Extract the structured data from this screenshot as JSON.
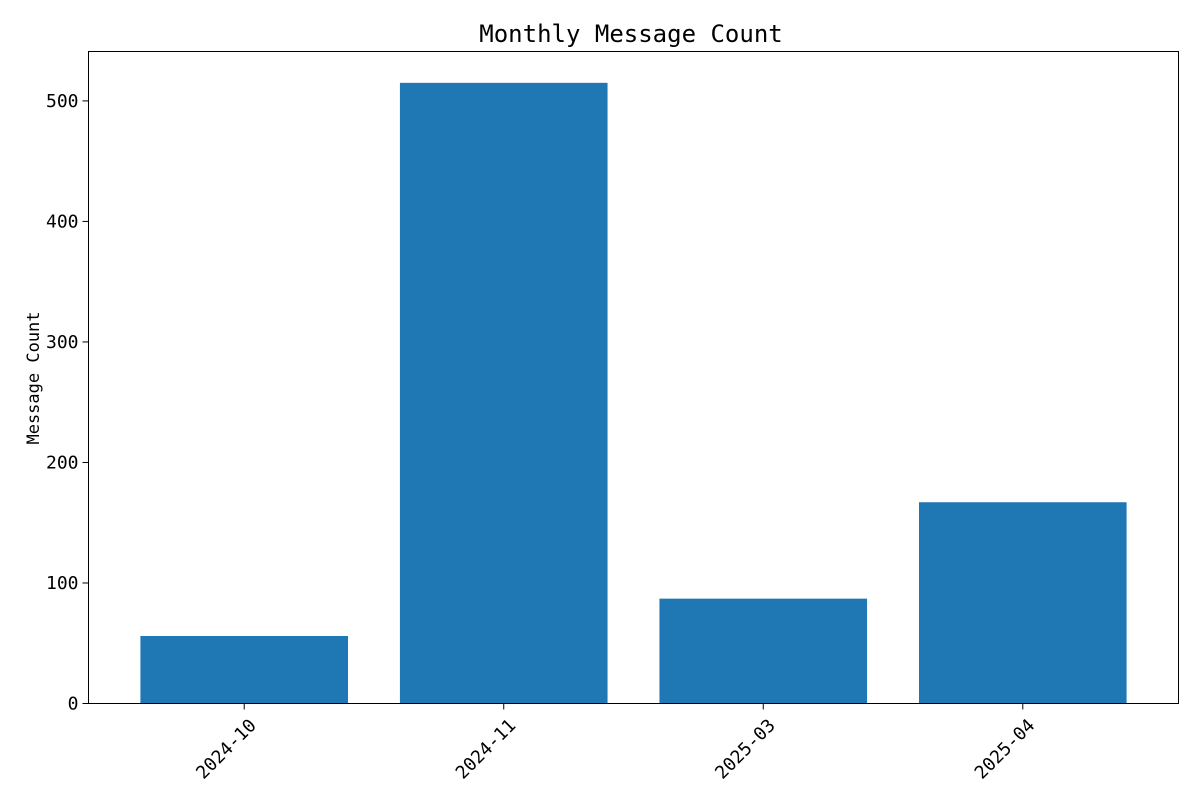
{
  "chart_data": {
    "type": "bar",
    "title": "Monthly Message Count",
    "xlabel": "",
    "ylabel": "Message Count",
    "categories": [
      "2024-10",
      "2024-11",
      "2025-03",
      "2025-04"
    ],
    "values": [
      56,
      515,
      87,
      167
    ],
    "ylim": [
      0,
      541
    ],
    "yticks": [
      0,
      100,
      200,
      300,
      400,
      500
    ],
    "grid": false,
    "legend": "none",
    "bar_color": "#1f77b4"
  }
}
